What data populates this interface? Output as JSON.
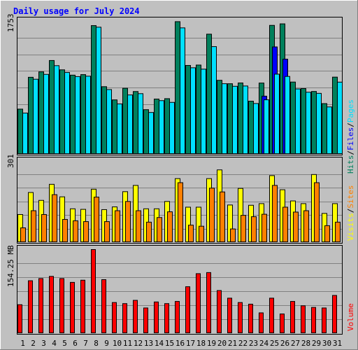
{
  "chart_data": {
    "title": "Daily usage for July 2024",
    "type": "bar",
    "days": [
      "1",
      "2",
      "3",
      "4",
      "5",
      "6",
      "7",
      "8",
      "9",
      "10",
      "11",
      "12",
      "13",
      "14",
      "15",
      "16",
      "17",
      "18",
      "19",
      "20",
      "21",
      "22",
      "23",
      "24",
      "25",
      "26",
      "27",
      "28",
      "29",
      "30",
      "31"
    ],
    "weekend_days": [
      "6",
      "7",
      "13",
      "14",
      "20",
      "21",
      "27",
      "28"
    ],
    "colors": {
      "title": "#0000ff",
      "weekday_label": "#000000",
      "weekend_label": "#008040",
      "hits": "#00805c",
      "files": "#0000ff",
      "pages": "#00e0ff",
      "visits": "#ffff00",
      "sites": "#ff8000",
      "volume": "#ff0000"
    },
    "panels": [
      {
        "id": "hits-files-pages",
        "max_label": "1753",
        "ymax": 1753,
        "legend": [
          {
            "text": "Hits",
            "color": "#00805c"
          },
          {
            "text": "Files",
            "color": "#0000ff"
          },
          {
            "text": "Pages",
            "color": "#00e0ff"
          }
        ],
        "series": [
          {
            "name": "Hits",
            "color": "#00805c",
            "values": [
              596,
              1016,
              1087,
              1237,
              1114,
              1044,
              1051,
              1697,
              892,
              718,
              871,
              828,
              589,
              729,
              734,
              1749,
              1172,
              1177,
              1584,
              976,
              931,
              941,
              701,
              940,
              1700,
              1720,
              953,
              867,
              829,
              669,
              1018
            ]
          },
          {
            "name": "Files",
            "color": "#0000ff",
            "values": [
              0,
              0,
              0,
              0,
              0,
              0,
              0,
              0,
              0,
              0,
              0,
              0,
              0,
              0,
              0,
              0,
              0,
              0,
              0,
              0,
              0,
              0,
              0,
              767,
              1416,
              1255,
              0,
              0,
              0,
              0,
              0
            ]
          },
          {
            "name": "Pages",
            "color": "#00e0ff",
            "values": [
              544,
              990,
              1054,
              1169,
              1079,
              1025,
              1030,
              1676,
              854,
              665,
              783,
              800,
              552,
              708,
              685,
              1667,
              1141,
              1123,
              1420,
              931,
              897,
              901,
              670,
              719,
              1057,
              1027,
              862,
              819,
              804,
              625,
              952
            ]
          }
        ]
      },
      {
        "id": "visits-sites",
        "max_label": "301",
        "ymax": 301,
        "legend": [
          {
            "text": "Visits",
            "color": "#ffff00"
          },
          {
            "text": "Sites",
            "color": "#ff8000"
          }
        ],
        "series": [
          {
            "name": "Visits",
            "color": "#ffff00",
            "values": [
              103,
              184,
              155,
              214,
              168,
              124,
              122,
              196,
              121,
              131,
              187,
              210,
              124,
              124,
              151,
              235,
              130,
              130,
              235,
              267,
              138,
              199,
              137,
              143,
              246,
              194,
              153,
              143,
              250,
              107,
              143
            ]
          },
          {
            "name": "Sites",
            "color": "#ff8000",
            "values": [
              54,
              117,
              103,
              176,
              85,
              80,
              77,
              167,
              77,
              117,
              151,
              117,
              75,
              92,
              113,
              220,
              64,
              60,
              200,
              186,
              50,
              100,
              95,
              104,
              210,
              130,
              112,
              117,
              220,
              62,
              75
            ]
          }
        ]
      },
      {
        "id": "volume",
        "max_label": "154.25 MB",
        "ymax": 154.25,
        "legend": [
          {
            "text": "Volume",
            "color": "#ff0000"
          }
        ],
        "series": [
          {
            "name": "Volume",
            "color": "#ff0000",
            "values": [
              53,
              97,
              101,
              105,
              101,
              94,
              98,
              154.25,
              99,
              57,
              55,
              61,
              47,
              58,
              55,
              59,
              86,
              110,
              112,
              79,
              65,
              57,
              54,
              38,
              65,
              36,
              59,
              51,
              48,
              47,
              70
            ]
          }
        ]
      }
    ],
    "legend_separator": "/",
    "grid": true
  }
}
